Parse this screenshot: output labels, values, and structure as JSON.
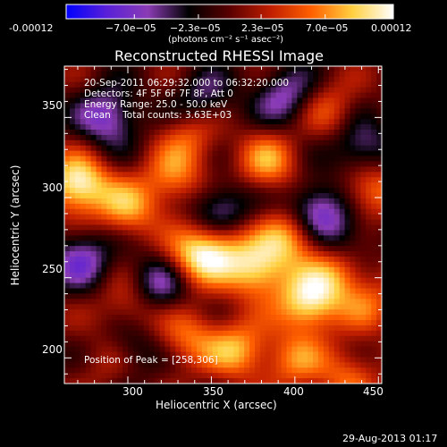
{
  "chart_data": {
    "type": "heatmap",
    "title": "Reconstructed RHESSI Image",
    "xlabel": "Heliocentric X (arcsec)",
    "ylabel": "Heliocentric Y (arcsec)",
    "xlim": [
      262,
      452
    ],
    "ylim": [
      184,
      382
    ],
    "x_ticks": [
      300,
      350,
      400,
      450
    ],
    "y_ticks": [
      200,
      250,
      300,
      350
    ],
    "colorbar": {
      "min": -0.00012,
      "max": 0.00012,
      "tick_labels": [
        "-0.00012",
        "−7.0e−05",
        "−2.3e−05",
        "2.3e−05",
        "7.0e−05",
        "0.00012"
      ],
      "units_label": "(photons cm⁻² s⁻¹ asec⁻²)",
      "colormap": [
        "#0000ff",
        "#5a20d8",
        "#8a3cb4",
        "#000000",
        "#5a0000",
        "#c01e00",
        "#ff6000",
        "#ffd040",
        "#ffffff"
      ]
    },
    "annotations": [
      "20-Sep-2011 06:29:32.000 to 06:32:20.000",
      "Detectors: 4F 5F 6F 7F 8F, Att 0",
      "Energy Range: 25.0 - 50.0 keV",
      "Clean    Total counts: 3.63E+03"
    ],
    "peak_label": "Position of Peak = [258,306]",
    "peak_position": [
      258,
      306
    ],
    "sources": [
      {
        "x": 270,
        "y": 308,
        "value": 1.0
      },
      {
        "x": 300,
        "y": 293,
        "value": 0.62
      },
      {
        "x": 328,
        "y": 312,
        "value": 0.55
      },
      {
        "x": 340,
        "y": 262,
        "value": 0.7
      },
      {
        "x": 355,
        "y": 270,
        "value": 0.6
      },
      {
        "x": 378,
        "y": 255,
        "value": 0.82
      },
      {
        "x": 408,
        "y": 234,
        "value": 0.88
      },
      {
        "x": 384,
        "y": 322,
        "value": 0.6
      },
      {
        "x": 398,
        "y": 276,
        "value": 0.7
      },
      {
        "x": 425,
        "y": 253,
        "value": 0.55
      },
      {
        "x": 302,
        "y": 232,
        "value": 0.45
      },
      {
        "x": 336,
        "y": 212,
        "value": 0.5
      },
      {
        "x": 366,
        "y": 205,
        "value": 0.65
      },
      {
        "x": 400,
        "y": 198,
        "value": 0.5
      },
      {
        "x": 432,
        "y": 188,
        "value": 0.45
      },
      {
        "x": 445,
        "y": 305,
        "value": 0.6
      },
      {
        "x": 338,
        "y": 340,
        "value": 0.45
      },
      {
        "x": 420,
        "y": 355,
        "value": 0.4
      },
      {
        "x": 290,
        "y": 200,
        "value": 0.35
      },
      {
        "x": 445,
        "y": 233,
        "value": 0.4
      },
      {
        "x": 355,
        "y": 292,
        "value": -0.6
      },
      {
        "x": 412,
        "y": 292,
        "value": -0.7
      },
      {
        "x": 318,
        "y": 245,
        "value": -0.6
      },
      {
        "x": 288,
        "y": 350,
        "value": -0.65
      },
      {
        "x": 300,
        "y": 206,
        "value": -0.5
      },
      {
        "x": 440,
        "y": 330,
        "value": -0.55
      },
      {
        "x": 272,
        "y": 262,
        "value": -0.6
      },
      {
        "x": 395,
        "y": 363,
        "value": -0.55
      },
      {
        "x": 345,
        "y": 360,
        "value": -0.45
      },
      {
        "x": 430,
        "y": 275,
        "value": -0.4
      }
    ]
  },
  "footer": {
    "timestamp": "29-Aug-2013 01:17"
  }
}
